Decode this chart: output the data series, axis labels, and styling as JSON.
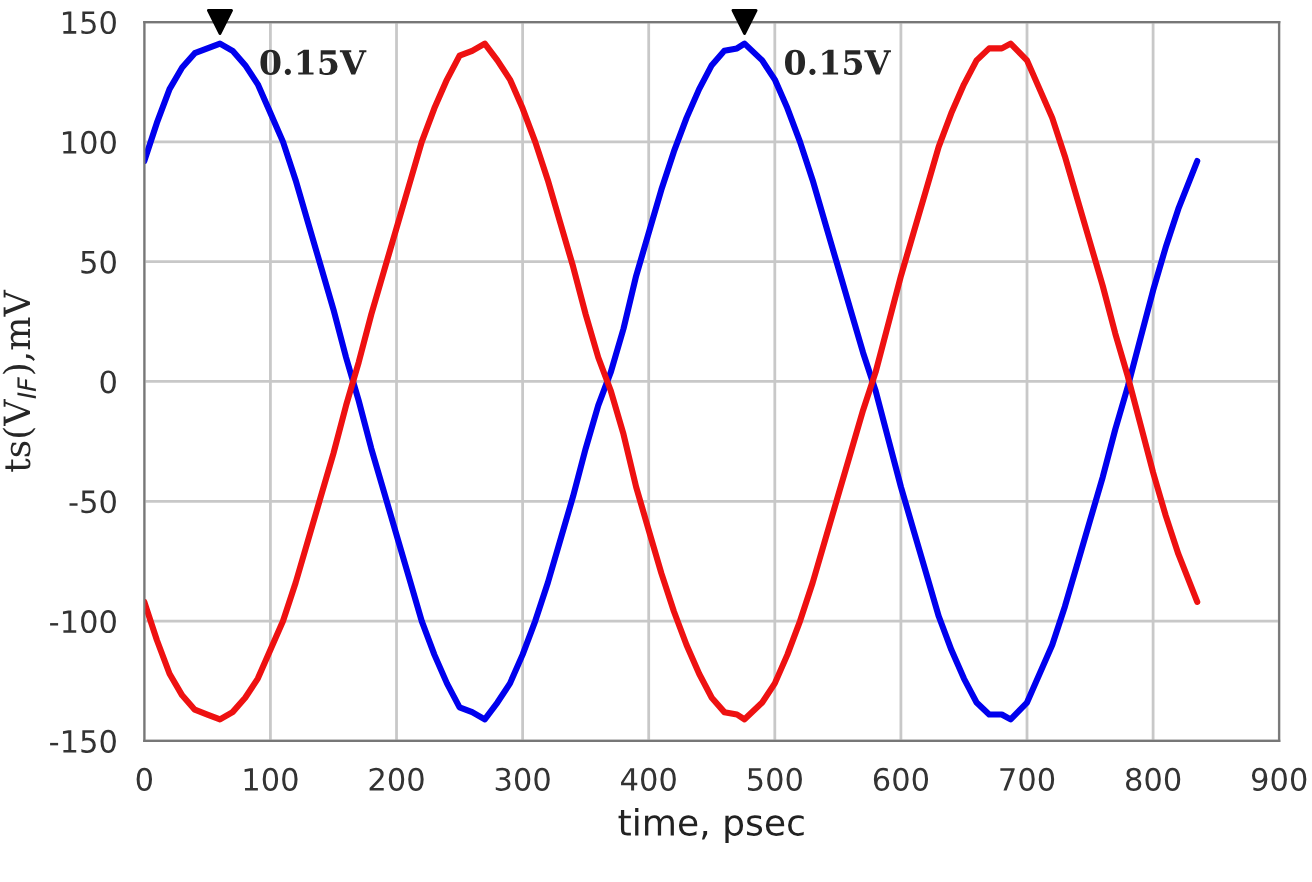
{
  "chart_data": {
    "type": "line",
    "xlabel": "time, psec",
    "ylabel": "ts(V$_{IF}$),mV",
    "x": [
      0,
      10,
      20,
      30,
      40,
      50,
      60,
      70,
      80,
      90,
      100,
      110,
      120,
      130,
      140,
      150,
      160,
      170,
      180,
      190,
      200,
      210,
      220,
      230,
      240,
      250,
      260,
      270,
      280,
      290,
      300,
      310,
      320,
      330,
      340,
      350,
      360,
      370,
      380,
      390,
      400,
      410,
      420,
      430,
      440,
      450,
      460,
      470,
      476,
      490,
      500,
      510,
      520,
      530,
      540,
      550,
      560,
      570,
      580,
      590,
      600,
      610,
      620,
      630,
      640,
      650,
      660,
      670,
      680,
      687,
      700,
      710,
      720,
      730,
      740,
      750,
      760,
      770,
      780,
      790,
      800,
      810,
      820,
      835
    ],
    "series": [
      {
        "color": "#0000ee",
        "values": [
          92,
          108,
          122,
          131,
          137,
          139,
          141,
          138,
          132,
          124,
          112,
          100,
          84,
          66,
          48,
          30,
          10,
          -8,
          -28,
          -46,
          -64,
          -82,
          -100,
          -114,
          -126,
          -136,
          -138,
          -141,
          -134,
          -126,
          -114,
          -100,
          -84,
          -66,
          -48,
          -28,
          -10,
          4,
          22,
          44,
          62,
          80,
          96,
          110,
          122,
          132,
          138,
          139,
          141,
          134,
          126,
          114,
          100,
          84,
          66,
          48,
          30,
          12,
          -4,
          -24,
          -44,
          -62,
          -80,
          -98,
          -112,
          -124,
          -134,
          -139,
          -139,
          -141,
          -134,
          -122,
          -110,
          -94,
          -76,
          -58,
          -40,
          -20,
          -2,
          18,
          38,
          56,
          72,
          92
        ]
      },
      {
        "color": "#ee1111",
        "values": [
          -92,
          -108,
          -122,
          -131,
          -137,
          -139,
          -141,
          -138,
          -132,
          -124,
          -112,
          -100,
          -84,
          -66,
          -48,
          -30,
          -10,
          8,
          28,
          46,
          64,
          82,
          100,
          114,
          126,
          136,
          138,
          141,
          134,
          126,
          114,
          100,
          84,
          66,
          48,
          28,
          10,
          -4,
          -22,
          -44,
          -62,
          -80,
          -96,
          -110,
          -122,
          -132,
          -138,
          -139,
          -141,
          -134,
          -126,
          -114,
          -100,
          -84,
          -66,
          -48,
          -30,
          -12,
          4,
          24,
          44,
          62,
          80,
          98,
          112,
          124,
          134,
          139,
          139,
          141,
          134,
          122,
          110,
          94,
          76,
          58,
          40,
          20,
          2,
          -18,
          -38,
          -56,
          -72,
          -92
        ]
      }
    ],
    "xlim": [
      0,
      900
    ],
    "xticks": [
      0,
      100,
      200,
      300,
      400,
      500,
      600,
      700,
      800,
      900
    ],
    "ylim": [
      -150,
      150
    ],
    "yticks": [
      -150,
      -100,
      -50,
      0,
      50,
      100,
      150
    ],
    "grid": true,
    "marker": "none",
    "line_style": "solid",
    "annotations": [
      {
        "text": "0.15V",
        "x": 60,
        "y": 141
      },
      {
        "text": "0.15V",
        "x": 476,
        "y": 141
      }
    ]
  }
}
